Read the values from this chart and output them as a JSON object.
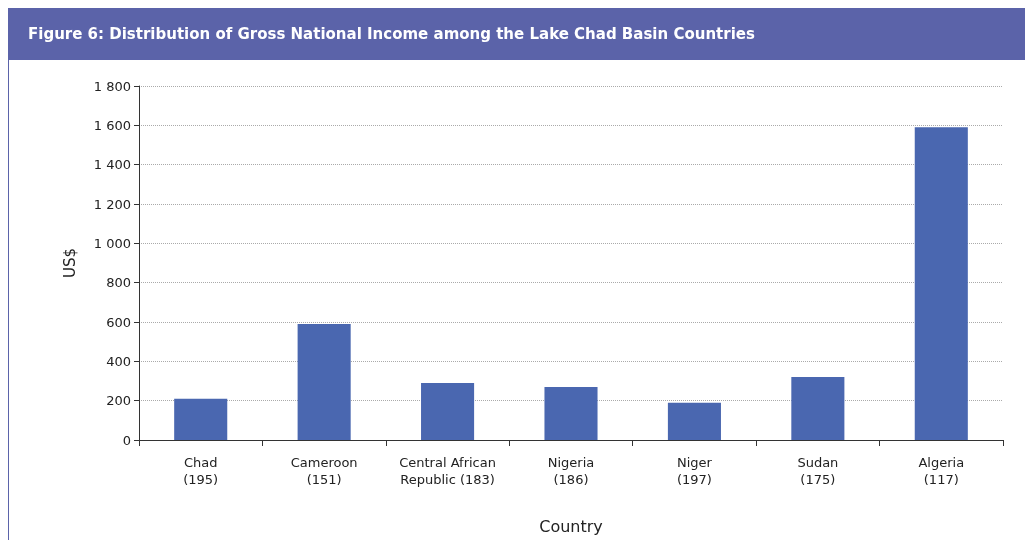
{
  "chart_data": {
    "type": "bar",
    "title": "Figure 6: Distribution of Gross National Income among the Lake Chad Basin Countries",
    "xlabel": "Country",
    "ylabel": "US$",
    "categories": [
      "Chad\n(195)",
      "Cameroon\n(151)",
      "Central African\nRepublic (183)",
      "Nigeria\n(186)",
      "Niger\n(197)",
      "Sudan\n(175)",
      "Algeria\n(117)"
    ],
    "values": [
      210,
      590,
      290,
      270,
      190,
      320,
      1590
    ],
    "color": "#4a67b0",
    "ylim": [
      0,
      1800
    ],
    "yticks": [
      0,
      200,
      400,
      600,
      800,
      {
        "value": 1000,
        "label": "1 000"
      },
      {
        "value": 1200,
        "label": "1 200"
      },
      {
        "value": 1400,
        "label": "1 400"
      },
      {
        "value": 1600,
        "label": "1 600"
      },
      {
        "value": 1800,
        "label": "1 800"
      }
    ],
    "grid": "y"
  }
}
